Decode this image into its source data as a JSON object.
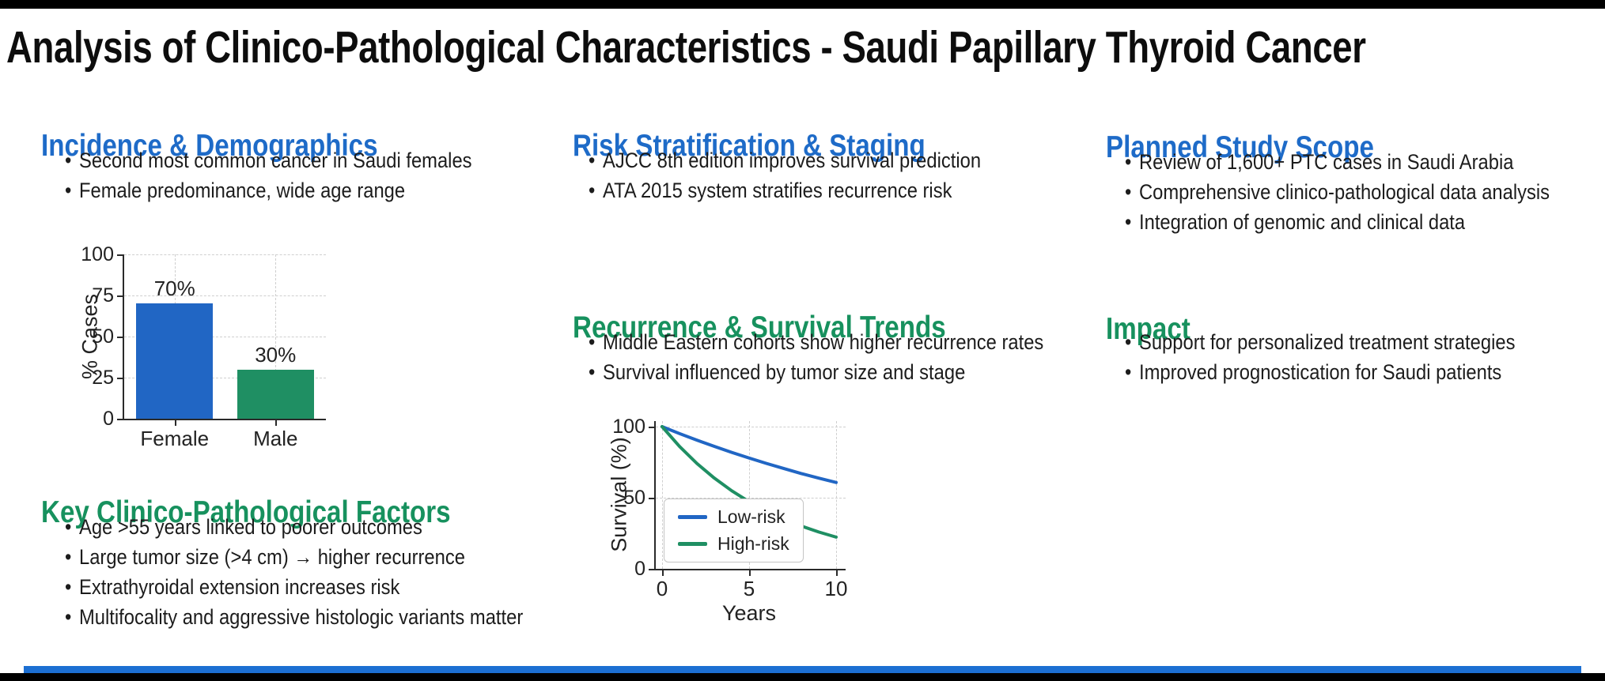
{
  "title": "Analysis of Clinico-Pathological Characteristics - Saudi Papillary Thyroid Cancer",
  "colors": {
    "heading_blue": "#1e6bc8",
    "heading_green": "#17915e",
    "chart_blue": "#2166c4",
    "chart_green": "#1f8f63",
    "footer_accent": "#1c6fd2",
    "border": "#000000"
  },
  "sections": {
    "incidence": {
      "heading": "Incidence & Demographics",
      "bullets": [
        "Second most common cancer in Saudi females",
        "Female predominance, wide age range"
      ]
    },
    "factors": {
      "heading": "Key Clinico-Pathological Factors",
      "bullets": [
        "Age >55 years linked to poorer outcomes",
        "Large tumor size (>4 cm) → higher recurrence",
        "Extrathyroidal extension increases risk",
        "Multifocality and aggressive histologic variants matter"
      ]
    },
    "risk": {
      "heading": "Risk Stratification & Staging",
      "bullets": [
        "AJCC 8th edition improves survival prediction",
        "ATA 2015 system stratifies recurrence risk"
      ]
    },
    "recurrence": {
      "heading": "Recurrence & Survival Trends",
      "bullets": [
        "Middle Eastern cohorts show higher recurrence rates",
        "Survival influenced by tumor size and stage"
      ]
    },
    "scope": {
      "heading": "Planned Study Scope",
      "bullets": [
        "Review of 1,600+ PTC cases in Saudi Arabia",
        "Comprehensive clinico-pathological data analysis",
        "Integration of genomic and clinical data"
      ]
    },
    "impact": {
      "heading": "Impact",
      "bullets": [
        "Support for personalized treatment strategies",
        "Improved prognostication for Saudi patients"
      ]
    }
  },
  "chart_data": [
    {
      "type": "bar",
      "categories": [
        "Female",
        "Male"
      ],
      "values": [
        70,
        30
      ],
      "data_labels": [
        "70%",
        "30%"
      ],
      "bar_colors": [
        "#2166c4",
        "#1f8f63"
      ],
      "title": "",
      "xlabel": "",
      "ylabel": "% Cases",
      "yticks": [
        0,
        25,
        50,
        75,
        100
      ],
      "ylim": [
        0,
        100
      ],
      "grid": true
    },
    {
      "type": "line",
      "x": [
        0,
        1,
        2,
        3,
        4,
        5,
        6,
        7,
        8,
        9,
        10
      ],
      "series": [
        {
          "name": "Low-risk",
          "color": "#2166c4",
          "values": [
            100,
            95.1,
            90.5,
            86.1,
            81.9,
            77.9,
            74.1,
            70.5,
            67.0,
            63.8,
            60.7
          ]
        },
        {
          "name": "High-risk",
          "color": "#1f8f63",
          "values": [
            100,
            86.1,
            74.1,
            63.8,
            54.9,
            47.2,
            40.7,
            35.0,
            30.1,
            25.9,
            22.3
          ]
        }
      ],
      "title": "",
      "xlabel": "Years",
      "ylabel": "Survival (%)",
      "xticks": [
        0,
        5,
        10
      ],
      "yticks": [
        0,
        50,
        100
      ],
      "xlim": [
        0,
        10
      ],
      "ylim": [
        0,
        105
      ],
      "legend_position": "lower left",
      "grid": true
    }
  ]
}
